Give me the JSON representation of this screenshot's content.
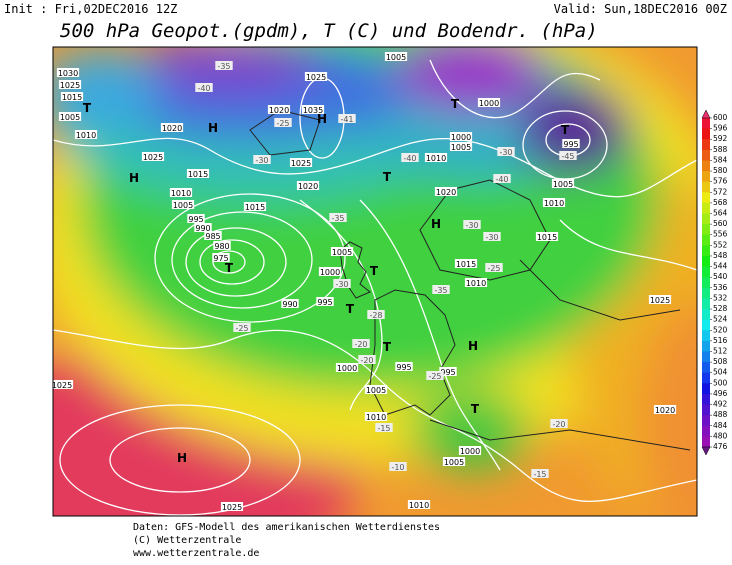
{
  "header": {
    "init": "Init : Fri,02DEC2016 12Z",
    "valid": "Valid: Sun,18DEC2016 00Z",
    "title": "500 hPa Geopot.(gpdm), T (C) und Bodendr. (hPa)"
  },
  "map": {
    "pressure_labels": [
      "1030",
      "1025",
      "1015",
      "1005",
      "1010",
      "1020",
      "1025",
      "1015",
      "1010",
      "1005",
      "995",
      "990",
      "985",
      "980",
      "975",
      "990",
      "995",
      "1005",
      "1000",
      "1020",
      "1035",
      "1025",
      "1025",
      "1020",
      "1015",
      "1005",
      "1000",
      "1000",
      "1005",
      "1010",
      "1020",
      "1010",
      "1005",
      "995",
      "1015",
      "1015",
      "1010",
      "1025",
      "1020",
      "1000",
      "1005",
      "1010",
      "995",
      "995",
      "1000",
      "1005",
      "1010",
      "1025",
      "1025"
    ],
    "temperature_labels": [
      "-35",
      "-40",
      "-25",
      "-30",
      "-35",
      "-41",
      "-40",
      "-30",
      "-30",
      "-25",
      "-35",
      "-30",
      "-28",
      "-25",
      "-20",
      "-20",
      "-25",
      "-15",
      "-10",
      "-20",
      "-15",
      "-30",
      "-40",
      "-45"
    ],
    "centers": [
      "H",
      "T",
      "H",
      "H",
      "T",
      "T",
      "T",
      "T",
      "H",
      "H",
      "T",
      "T",
      "T",
      "H",
      "T"
    ]
  },
  "colorbar": {
    "ticks": [
      600,
      596,
      592,
      588,
      584,
      580,
      576,
      572,
      568,
      564,
      560,
      556,
      552,
      548,
      544,
      540,
      536,
      532,
      528,
      524,
      520,
      516,
      512,
      508,
      504,
      500,
      496,
      492,
      488,
      484,
      480,
      476
    ]
  },
  "footer": {
    "lines": [
      "Daten: GFS-Modell des amerikanischen Wetterdienstes",
      "(C) Wetterzentrale",
      "www.wetterzentrale.de"
    ]
  }
}
